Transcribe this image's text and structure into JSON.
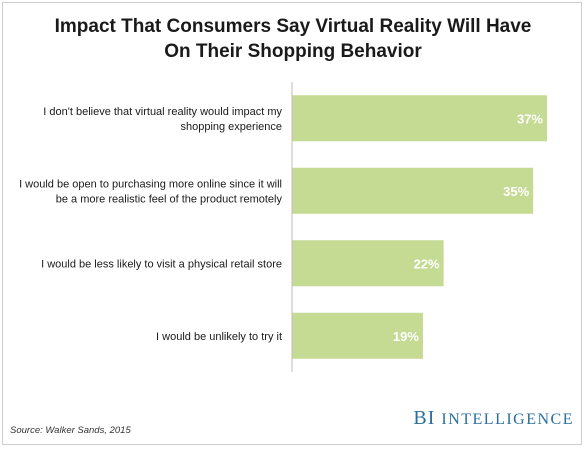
{
  "title": {
    "line1": "Impact That Consumers Say Virtual Reality Will Have",
    "line2": "On Their Shopping Behavior"
  },
  "source": "Source: Walker Sands, 2015",
  "brand": {
    "prefix": "BI",
    "name": "INTELLIGENCE"
  },
  "colors": {
    "bar": "#c5da93",
    "value_label": "#ffffff",
    "axis": "#bdbdbd"
  },
  "chart_data": {
    "type": "bar",
    "orientation": "horizontal",
    "categories": [
      [
        "I don't believe that virtual reality would impact my",
        "shopping experience"
      ],
      [
        "I would be open to purchasing more online since it will",
        "be a more realistic feel of the product remotely"
      ],
      [
        "I would be less likely to visit a physical retail store"
      ],
      [
        "I would be unlikely to try it"
      ]
    ],
    "values": [
      37,
      35,
      22,
      19
    ],
    "value_labels": [
      "37%",
      "35%",
      "22%",
      "19%"
    ],
    "xlim": [
      0,
      37
    ],
    "grid": false,
    "legend": "none"
  }
}
